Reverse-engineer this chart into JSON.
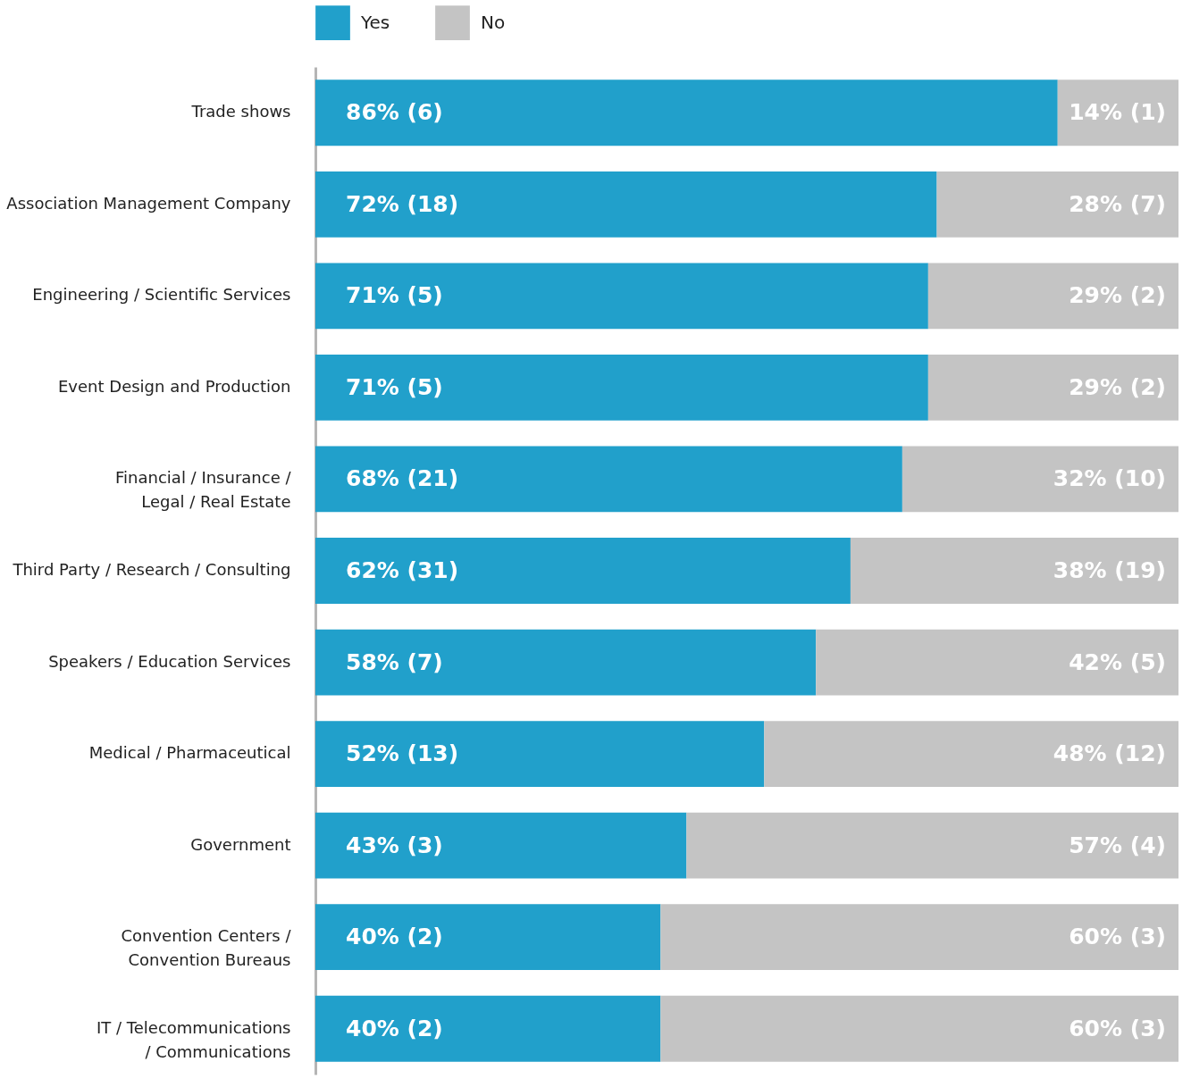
{
  "chart_data": {
    "type": "bar",
    "orientation": "horizontal",
    "stacked": true,
    "xlim": [
      0,
      100
    ],
    "tick_labels": "y",
    "legend": "top",
    "categories": [
      "Trade shows",
      "Association Management Company",
      "Engineering / Scientific Services",
      "Event Design and Production",
      "Financial / Insurance /\nLegal / Real Estate",
      "Third Party / Research / Consulting",
      "Speakers / Education Services",
      "Medical / Pharmaceutical",
      "Government",
      "Convention Centers /\nConvention Bureaus",
      "IT / Telecommunications\n/ Communications"
    ],
    "series": [
      {
        "name": "Yes",
        "color": "#21a0cb",
        "values": [
          86,
          72,
          71,
          71,
          68,
          62,
          58,
          52,
          43,
          40,
          40
        ],
        "value_labels": [
          "86% (6)",
          "72% (18)",
          "71% (5)",
          "71% (5)",
          "68% (21)",
          "62% (31)",
          "58% (7)",
          "52% (13)",
          "43% (3)",
          "40% (2)",
          "40% (2)"
        ]
      },
      {
        "name": "No",
        "color": "#c4c4c4",
        "values": [
          14,
          28,
          29,
          29,
          32,
          38,
          42,
          48,
          57,
          60,
          60
        ],
        "value_labels": [
          "14% (1)",
          "28% (7)",
          "29% (2)",
          "29% (2)",
          "32% (10)",
          "38% (19)",
          "42% (5)",
          "48% (12)",
          "57% (4)",
          "60% (3)",
          "60% (3)"
        ]
      }
    ]
  }
}
